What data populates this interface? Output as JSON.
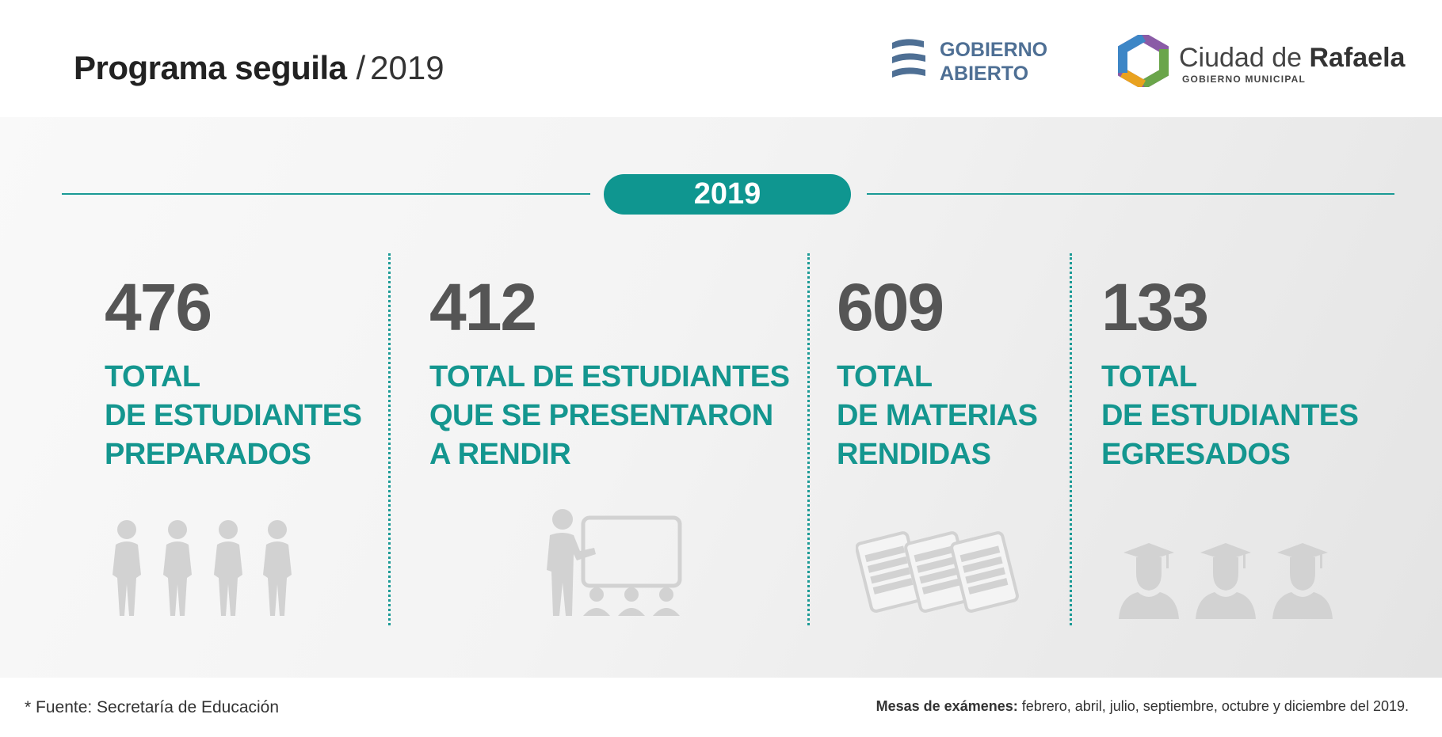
{
  "header": {
    "title": "Programa seguila",
    "separator": "/",
    "year": "2019"
  },
  "logos": {
    "gobierno_abierto": {
      "line1": "GOBIERNO",
      "line2": "ABIERTO",
      "color": "#4e6f94"
    },
    "rafaela": {
      "name_regular": "Ciudad de ",
      "name_bold": "Rafaela",
      "subtitle": "GOBIERNO MUNICIPAL"
    }
  },
  "banner": {
    "year": "2019"
  },
  "stats": [
    {
      "value": "476",
      "label_lines": [
        "TOTAL",
        "DE ESTUDIANTES",
        "PREPARADOS"
      ],
      "icon": "students-icon"
    },
    {
      "value": "412",
      "label_lines": [
        "TOTAL DE ESTUDIANTES",
        "QUE SE PRESENTARON",
        "A RENDIR"
      ],
      "icon": "presentation-icon"
    },
    {
      "value": "609",
      "label_lines": [
        "TOTAL",
        "DE MATERIAS",
        "RENDIDAS"
      ],
      "icon": "documents-icon"
    },
    {
      "value": "133",
      "label_lines": [
        "TOTAL",
        "DE ESTUDIANTES",
        "EGRESADOS"
      ],
      "icon": "graduates-icon"
    }
  ],
  "footer": {
    "source": "* Fuente: Secretaría de Educación",
    "mesas_label": "Mesas de exámenes:",
    "mesas_text": " febrero, abril, julio, septiembre, octubre y diciembre del 2019."
  },
  "colors": {
    "accent": "#0f9690",
    "number": "#555555",
    "icon": "#d2d2d2"
  }
}
